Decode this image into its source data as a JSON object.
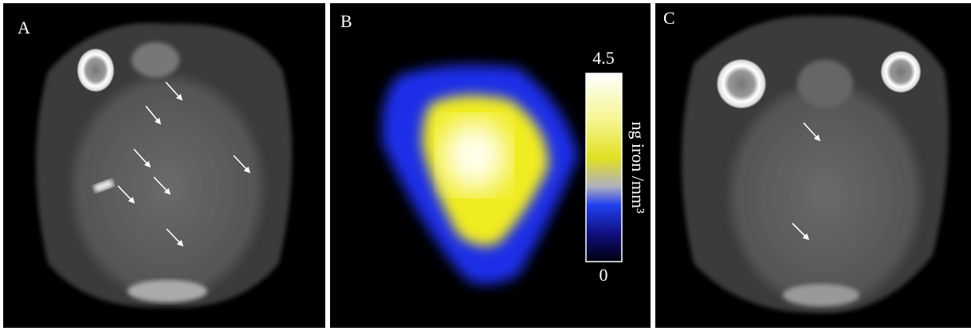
{
  "panels": [
    {
      "label": "A"
    },
    {
      "label": "B",
      "colorbar": {
        "max": 4.5,
        "min": 0,
        "label": "ng iron /mm³"
      }
    },
    {
      "label": "C"
    }
  ]
}
